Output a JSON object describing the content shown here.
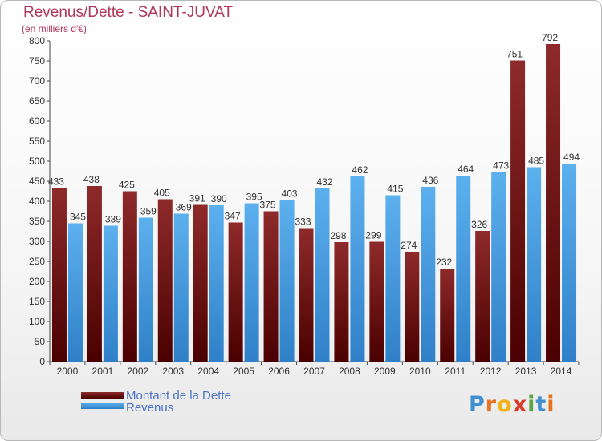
{
  "header": {
    "title": "Revenus/Dette - SAINT-JUVAT",
    "subtitle": "(en milliers d'€)"
  },
  "colors": {
    "debt": "#7a1a1a",
    "revenue": "#4a9fe0",
    "title": "#b0365a",
    "legend_text": "#4a72c8"
  },
  "chart_data": {
    "type": "bar",
    "categories": [
      "2000",
      "2001",
      "2002",
      "2003",
      "2004",
      "2005",
      "2006",
      "2007",
      "2008",
      "2009",
      "2010",
      "2011",
      "2012",
      "2013",
      "2014"
    ],
    "series": [
      {
        "name": "Montant de la Dette",
        "values": [
          433,
          438,
          425,
          405,
          391,
          347,
          375,
          333,
          298,
          299,
          274,
          232,
          326,
          751,
          792
        ]
      },
      {
        "name": "Revenus",
        "values": [
          345,
          339,
          359,
          369,
          390,
          395,
          403,
          432,
          462,
          415,
          436,
          464,
          473,
          485,
          494
        ]
      }
    ],
    "ylim": [
      0,
      800
    ],
    "yticks": [
      0,
      50,
      100,
      150,
      200,
      250,
      300,
      350,
      400,
      450,
      500,
      550,
      600,
      650,
      700,
      750,
      800
    ],
    "grid": false,
    "legend_position": "bottom-left"
  },
  "legend": {
    "items": [
      {
        "label": "Montant de la Dette"
      },
      {
        "label": "Revenus"
      }
    ]
  },
  "logo": {
    "text": "Proxiti",
    "letters": [
      "P",
      "r",
      "o",
      "x",
      "i",
      "t",
      "i"
    ],
    "letter_colors": [
      "#3f8fd2",
      "#e8731f",
      "#f0b41a",
      "#d93a2b",
      "#5aa640",
      "#3f8fd2",
      "#e8731f"
    ]
  }
}
